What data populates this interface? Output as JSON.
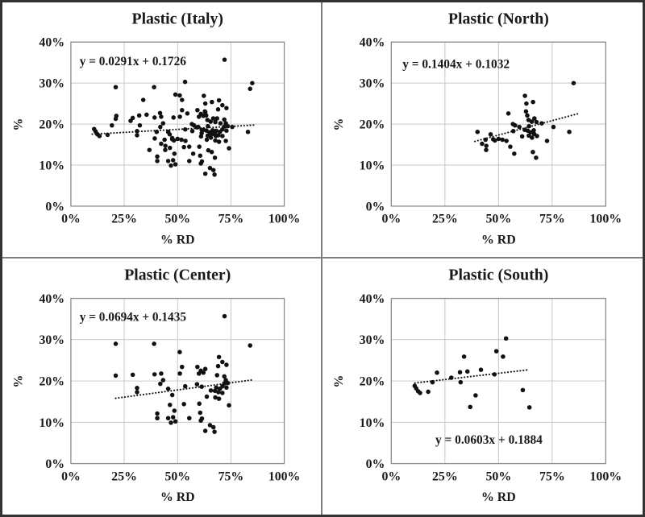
{
  "figure": {
    "colors": {
      "background": "#ffffff",
      "point": "#111111",
      "trend": "#111111",
      "grid": "#c6c6c6",
      "axis_border": "#8c8c8c",
      "text": "#1a1a1a",
      "panel_divider": "#7d7d7d",
      "outer_border": "#333333"
    }
  },
  "chart_data": [
    {
      "panel": "italy",
      "type": "scatter",
      "title": "Plastic (Italy)",
      "equation": "y = 0.0291x + 0.1726",
      "xlabel": "% RD",
      "ylabel": "%",
      "xlim": [
        0,
        100
      ],
      "ylim": [
        0,
        40
      ],
      "xticks": [
        0,
        25,
        50,
        75,
        100
      ],
      "xtick_labels": [
        "0%",
        "25%",
        "50%",
        "75%",
        "100%"
      ],
      "yticks": [
        0,
        10,
        20,
        30,
        40
      ],
      "ytick_labels": [
        "0%",
        "10%",
        "20%",
        "30%",
        "40%"
      ],
      "grid": true,
      "trend": {
        "slope": 0.0291,
        "intercept": 0.1726,
        "x_start": 10,
        "x_end": 86
      },
      "equation_pos": {
        "x": 97,
        "y": 79,
        "anchor": "start"
      },
      "points": [
        [
          40.2,
          18.1
        ],
        [
          42.3,
          15.2
        ],
        [
          43.9,
          16.2
        ],
        [
          44.3,
          14.7
        ],
        [
          44.2,
          13.7
        ],
        [
          46.3,
          17.5
        ],
        [
          47.5,
          16.3
        ],
        [
          48.3,
          16.0
        ],
        [
          50.0,
          16.4
        ],
        [
          51.8,
          16.2
        ],
        [
          53.7,
          15.9
        ],
        [
          54.6,
          22.6
        ],
        [
          55.5,
          14.5
        ],
        [
          56.7,
          20.0
        ],
        [
          57.7,
          19.7
        ],
        [
          56.9,
          18.3
        ],
        [
          57.3,
          12.8
        ],
        [
          59.7,
          19.3
        ],
        [
          61.0,
          17.0
        ],
        [
          62.2,
          18.6
        ],
        [
          62.3,
          26.9
        ],
        [
          63.0,
          25.0
        ],
        [
          66.1,
          25.4
        ],
        [
          62.8,
          23.1
        ],
        [
          63.4,
          22.1
        ],
        [
          64.0,
          21.0
        ],
        [
          65.5,
          20.6
        ],
        [
          66.7,
          21.4
        ],
        [
          67.7,
          20.5
        ],
        [
          70.1,
          20.2
        ],
        [
          64.2,
          19.5
        ],
        [
          63.6,
          18.4
        ],
        [
          65.0,
          18.0
        ],
        [
          66.4,
          18.5
        ],
        [
          64.1,
          17.2
        ],
        [
          65.6,
          16.7
        ],
        [
          66.6,
          17.6
        ],
        [
          67.9,
          17.1
        ],
        [
          66.0,
          13.2
        ],
        [
          67.5,
          11.8
        ],
        [
          72.6,
          15.9
        ],
        [
          75.6,
          19.3
        ],
        [
          83.0,
          18.1
        ],
        [
          85.0,
          30.0
        ],
        [
          21.0,
          29.0
        ],
        [
          39.0,
          29.0
        ],
        [
          51.0,
          27.0
        ],
        [
          21.0,
          21.3
        ],
        [
          29.0,
          21.5
        ],
        [
          39.2,
          21.6
        ],
        [
          42.3,
          21.8
        ],
        [
          43.2,
          20.2
        ],
        [
          41.9,
          19.3
        ],
        [
          51.1,
          21.8
        ],
        [
          52.1,
          23.4
        ],
        [
          31.0,
          18.3
        ],
        [
          31.0,
          17.3
        ],
        [
          45.6,
          18.1
        ],
        [
          47.5,
          16.6
        ],
        [
          53.6,
          18.7
        ],
        [
          53.0,
          14.4
        ],
        [
          46.4,
          14.2
        ],
        [
          48.5,
          12.8
        ],
        [
          40.5,
          12.1
        ],
        [
          40.5,
          11.0
        ],
        [
          45.6,
          11.0
        ],
        [
          47.9,
          11.2
        ],
        [
          46.9,
          9.9
        ],
        [
          49.0,
          10.2
        ],
        [
          55.5,
          11.0
        ],
        [
          59.3,
          23.4
        ],
        [
          60.0,
          21.8
        ],
        [
          60.9,
          22.5
        ],
        [
          62.1,
          22.0
        ],
        [
          63.0,
          22.9
        ],
        [
          59.1,
          19.2
        ],
        [
          61.3,
          18.6
        ],
        [
          60.2,
          14.5
        ],
        [
          60.6,
          12.3
        ],
        [
          61.4,
          10.9
        ],
        [
          60.9,
          10.4
        ],
        [
          72.0,
          35.7
        ],
        [
          84.0,
          28.6
        ],
        [
          69.4,
          25.8
        ],
        [
          71.0,
          24.6
        ],
        [
          72.9,
          23.9
        ],
        [
          69.0,
          23.6
        ],
        [
          68.5,
          21.4
        ],
        [
          71.9,
          21.1
        ],
        [
          72.6,
          20.2
        ],
        [
          73.5,
          19.5
        ],
        [
          71.9,
          19.4
        ],
        [
          71.0,
          18.7
        ],
        [
          72.9,
          18.4
        ],
        [
          69.8,
          18.1
        ],
        [
          68.1,
          18.4
        ],
        [
          67.5,
          17.6
        ],
        [
          69.1,
          17.3
        ],
        [
          71.0,
          17.1
        ],
        [
          63.7,
          16.2
        ],
        [
          67.7,
          16.0
        ],
        [
          69.4,
          15.7
        ],
        [
          65.6,
          17.7
        ],
        [
          74.1,
          14.1
        ],
        [
          65.2,
          9.3
        ],
        [
          66.8,
          8.8
        ],
        [
          63.0,
          7.9
        ],
        [
          67.3,
          7.7
        ],
        [
          10.9,
          18.8
        ],
        [
          11.6,
          18.2
        ],
        [
          12.5,
          17.5
        ],
        [
          13.4,
          17.1
        ],
        [
          17.2,
          17.4
        ],
        [
          19.2,
          19.7
        ],
        [
          21.3,
          22.0
        ],
        [
          28.0,
          20.8
        ],
        [
          32.0,
          22.1
        ],
        [
          32.3,
          19.7
        ],
        [
          33.9,
          25.9
        ],
        [
          35.5,
          22.3
        ],
        [
          36.8,
          13.7
        ],
        [
          39.3,
          16.5
        ],
        [
          41.8,
          22.7
        ],
        [
          48.1,
          21.6
        ],
        [
          49.0,
          27.2
        ],
        [
          52.1,
          25.9
        ],
        [
          53.5,
          30.3
        ],
        [
          61.3,
          17.8
        ],
        [
          64.4,
          13.6
        ]
      ]
    },
    {
      "panel": "north",
      "type": "scatter",
      "title": "Plastic (North)",
      "equation": "y = 0.1404x + 0.1032",
      "xlabel": "% RD",
      "ylabel": "%",
      "xlim": [
        0,
        100
      ],
      "ylim": [
        0,
        40
      ],
      "xticks": [
        0,
        25,
        50,
        75,
        100
      ],
      "xtick_labels": [
        "0%",
        "25%",
        "50%",
        "75%",
        "100%"
      ],
      "yticks": [
        0,
        10,
        20,
        30,
        40
      ],
      "ytick_labels": [
        "0%",
        "10%",
        "20%",
        "30%",
        "40%"
      ],
      "grid": true,
      "trend": {
        "slope": 0.1404,
        "intercept": 0.1032,
        "x_start": 39,
        "x_end": 87
      },
      "equation_pos": {
        "x": 100,
        "y": 83,
        "anchor": "start"
      },
      "points": [
        [
          40.2,
          18.1
        ],
        [
          42.3,
          15.2
        ],
        [
          43.9,
          16.2
        ],
        [
          44.3,
          14.7
        ],
        [
          44.2,
          13.7
        ],
        [
          46.3,
          17.5
        ],
        [
          47.5,
          16.3
        ],
        [
          48.3,
          16.0
        ],
        [
          50.0,
          16.4
        ],
        [
          51.8,
          16.2
        ],
        [
          53.7,
          15.9
        ],
        [
          54.6,
          22.6
        ],
        [
          55.5,
          14.5
        ],
        [
          56.7,
          20.0
        ],
        [
          57.7,
          19.7
        ],
        [
          56.9,
          18.3
        ],
        [
          57.3,
          12.8
        ],
        [
          59.7,
          19.3
        ],
        [
          61.0,
          17.0
        ],
        [
          62.2,
          18.6
        ],
        [
          62.3,
          26.9
        ],
        [
          63.0,
          25.0
        ],
        [
          66.1,
          25.4
        ],
        [
          62.8,
          23.1
        ],
        [
          63.4,
          22.1
        ],
        [
          64.0,
          21.0
        ],
        [
          65.5,
          20.6
        ],
        [
          66.7,
          21.4
        ],
        [
          67.7,
          20.5
        ],
        [
          70.1,
          20.2
        ],
        [
          64.2,
          19.5
        ],
        [
          63.6,
          18.4
        ],
        [
          65.0,
          18.0
        ],
        [
          66.4,
          18.5
        ],
        [
          64.1,
          17.2
        ],
        [
          65.6,
          16.7
        ],
        [
          66.6,
          17.6
        ],
        [
          67.9,
          17.1
        ],
        [
          66.0,
          13.2
        ],
        [
          67.5,
          11.8
        ],
        [
          72.6,
          15.9
        ],
        [
          75.6,
          19.3
        ],
        [
          83.0,
          18.1
        ],
        [
          85.0,
          30.0
        ]
      ]
    },
    {
      "panel": "center",
      "type": "scatter",
      "title": "Plastic (Center)",
      "equation": "y = 0.0694x + 0.1435",
      "xlabel": "% RD",
      "ylabel": "%",
      "xlim": [
        0,
        100
      ],
      "ylim": [
        0,
        40
      ],
      "xticks": [
        0,
        25,
        50,
        75,
        100
      ],
      "xtick_labels": [
        "0%",
        "25%",
        "50%",
        "75%",
        "100%"
      ],
      "yticks": [
        0,
        10,
        20,
        30,
        40
      ],
      "ytick_labels": [
        "0%",
        "10%",
        "20%",
        "30%",
        "40%"
      ],
      "grid": true,
      "trend": {
        "slope": 0.0694,
        "intercept": 0.1435,
        "x_start": 21,
        "x_end": 85
      },
      "equation_pos": {
        "x": 97,
        "y": 78,
        "anchor": "start"
      },
      "points": [
        [
          21.0,
          29.0
        ],
        [
          39.0,
          29.0
        ],
        [
          51.0,
          27.0
        ],
        [
          21.0,
          21.3
        ],
        [
          29.0,
          21.5
        ],
        [
          39.2,
          21.6
        ],
        [
          42.3,
          21.8
        ],
        [
          43.2,
          20.2
        ],
        [
          41.9,
          19.3
        ],
        [
          51.1,
          21.8
        ],
        [
          52.1,
          23.4
        ],
        [
          31.0,
          18.3
        ],
        [
          31.0,
          17.3
        ],
        [
          45.6,
          18.1
        ],
        [
          47.5,
          16.6
        ],
        [
          53.6,
          18.7
        ],
        [
          53.0,
          14.4
        ],
        [
          46.4,
          14.2
        ],
        [
          48.5,
          12.8
        ],
        [
          40.5,
          12.1
        ],
        [
          40.5,
          11.0
        ],
        [
          45.6,
          11.0
        ],
        [
          47.9,
          11.2
        ],
        [
          46.9,
          9.9
        ],
        [
          49.0,
          10.2
        ],
        [
          55.5,
          11.0
        ],
        [
          59.3,
          23.4
        ],
        [
          60.0,
          21.8
        ],
        [
          60.9,
          22.5
        ],
        [
          62.1,
          22.0
        ],
        [
          63.0,
          22.9
        ],
        [
          59.1,
          19.2
        ],
        [
          61.3,
          18.6
        ],
        [
          60.2,
          14.5
        ],
        [
          60.6,
          12.3
        ],
        [
          61.4,
          10.9
        ],
        [
          60.9,
          10.4
        ],
        [
          72.0,
          35.7
        ],
        [
          84.0,
          28.6
        ],
        [
          69.4,
          25.8
        ],
        [
          71.0,
          24.6
        ],
        [
          72.9,
          23.9
        ],
        [
          69.0,
          23.6
        ],
        [
          68.5,
          21.4
        ],
        [
          71.9,
          21.1
        ],
        [
          72.6,
          20.2
        ],
        [
          73.5,
          19.5
        ],
        [
          71.9,
          19.4
        ],
        [
          71.0,
          18.7
        ],
        [
          72.9,
          18.4
        ],
        [
          69.8,
          18.1
        ],
        [
          68.1,
          18.4
        ],
        [
          67.5,
          17.6
        ],
        [
          69.1,
          17.3
        ],
        [
          71.0,
          17.1
        ],
        [
          63.7,
          16.2
        ],
        [
          67.7,
          16.0
        ],
        [
          69.4,
          15.7
        ],
        [
          65.6,
          17.7
        ],
        [
          74.1,
          14.1
        ],
        [
          65.2,
          9.3
        ],
        [
          66.8,
          8.8
        ],
        [
          63.0,
          7.9
        ],
        [
          67.3,
          7.7
        ]
      ]
    },
    {
      "panel": "south",
      "type": "scatter",
      "title": "Plastic (South)",
      "equation": "y = 0.0603x + 0.1884",
      "xlabel": "% RD",
      "ylabel": "%",
      "xlim": [
        0,
        100
      ],
      "ylim": [
        0,
        40
      ],
      "xticks": [
        0,
        25,
        50,
        75,
        100
      ],
      "xtick_labels": [
        "0%",
        "25%",
        "50%",
        "75%",
        "100%"
      ],
      "yticks": [
        0,
        10,
        20,
        30,
        40
      ],
      "ytick_labels": [
        "0%",
        "10%",
        "20%",
        "30%",
        "40%"
      ],
      "grid": true,
      "trend": {
        "slope": 0.0603,
        "intercept": 0.1884,
        "x_start": 11,
        "x_end": 64
      },
      "equation_pos": {
        "x": 208,
        "y": 232,
        "anchor": "middle"
      },
      "points": [
        [
          10.9,
          18.8
        ],
        [
          11.6,
          18.2
        ],
        [
          12.5,
          17.5
        ],
        [
          13.4,
          17.1
        ],
        [
          17.2,
          17.4
        ],
        [
          19.2,
          19.7
        ],
        [
          21.3,
          22.0
        ],
        [
          28.0,
          20.8
        ],
        [
          32.0,
          22.1
        ],
        [
          32.3,
          19.7
        ],
        [
          33.9,
          25.9
        ],
        [
          35.5,
          22.3
        ],
        [
          36.8,
          13.7
        ],
        [
          39.3,
          16.5
        ],
        [
          41.8,
          22.7
        ],
        [
          48.1,
          21.6
        ],
        [
          49.0,
          27.2
        ],
        [
          52.1,
          25.9
        ],
        [
          53.5,
          30.3
        ],
        [
          61.3,
          17.8
        ],
        [
          64.4,
          13.6
        ]
      ]
    }
  ]
}
